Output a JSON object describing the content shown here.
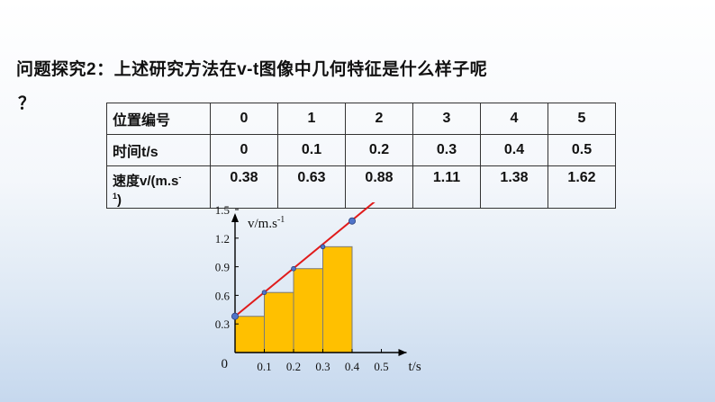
{
  "question": {
    "text": "问题探究2：上述研究方法在v-t图像中几何特征是什么样子呢",
    "mark": "？"
  },
  "table": {
    "row_headers": [
      "位置编号",
      "时间t/s"
    ],
    "speed_header": {
      "main": "速度v/(m.s",
      "sup": "-",
      "sub": "1",
      "close": ")"
    },
    "rows": [
      [
        "0",
        "1",
        "2",
        "3",
        "4",
        "5"
      ],
      [
        "0",
        "0.1",
        "0.2",
        "0.3",
        "0.4",
        "0.5"
      ],
      [
        "0.38",
        "0.63",
        "0.88",
        "1.11",
        "1.38",
        "1.62"
      ]
    ]
  },
  "chart_data": {
    "type": "line",
    "ylabel_main": "v/m.s",
    "ylabel_sup": "-1",
    "xlabel": "t/s",
    "origin_label": "0",
    "x_ticks": [
      "0.1",
      "0.2",
      "0.3",
      "0.4",
      "0.5"
    ],
    "y_ticks": [
      "0.3",
      "0.6",
      "0.9",
      "1.2",
      "1.5"
    ],
    "xlim": [
      0,
      0.5
    ],
    "ylim": [
      0,
      1.6
    ],
    "points": [
      {
        "t": 0,
        "v": 0.38
      },
      {
        "t": 0.1,
        "v": 0.63
      },
      {
        "t": 0.2,
        "v": 0.88
      },
      {
        "t": 0.3,
        "v": 1.11
      },
      {
        "t": 0.4,
        "v": 1.38
      }
    ],
    "steps": [
      {
        "t0": 0,
        "t1": 0.1,
        "v": 0.38
      },
      {
        "t0": 0.1,
        "t1": 0.2,
        "v": 0.63
      },
      {
        "t0": 0.2,
        "t1": 0.3,
        "v": 0.88
      },
      {
        "t0": 0.3,
        "t1": 0.4,
        "v": 1.11
      }
    ],
    "fit_line": {
      "t_start": 0,
      "v_start": 0.38,
      "t_end": 0.48,
      "v_end": 1.59
    },
    "colors": {
      "fill": "#ffc000",
      "line": "#e01b1b",
      "point": "#4f74c9",
      "axis": "#000000"
    }
  }
}
